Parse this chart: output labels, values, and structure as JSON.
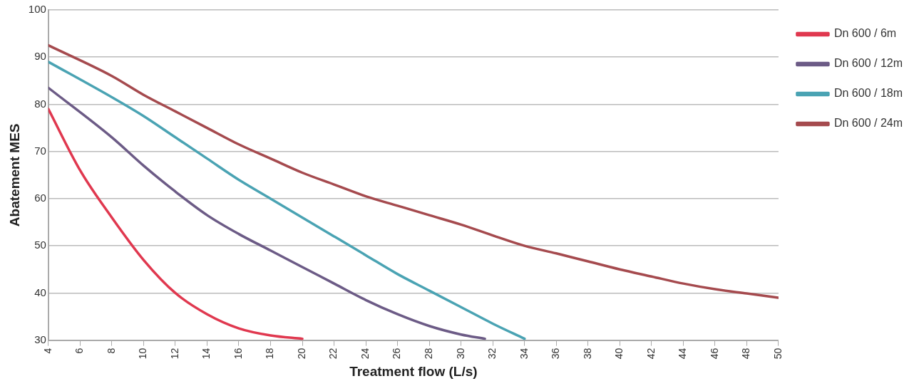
{
  "chart_data": {
    "type": "line",
    "xlabel": "Treatment flow (L/s)",
    "ylabel": "Abatement MES",
    "xlim": [
      4,
      50
    ],
    "xticks": [
      4,
      6,
      8,
      10,
      12,
      14,
      16,
      18,
      20,
      22,
      24,
      26,
      28,
      30,
      32,
      34,
      36,
      38,
      40,
      42,
      44,
      46,
      48,
      50
    ],
    "ylim": [
      30,
      100
    ],
    "yticks": [
      30,
      40,
      50,
      60,
      70,
      80,
      90,
      100
    ],
    "grid": "y",
    "legend": "top right",
    "marker": "none",
    "line_style": "solid",
    "series": [
      {
        "name": "Dn 600 / 6m",
        "color": "#e0384f",
        "x": [
          4,
          6,
          8,
          10,
          12,
          14,
          16,
          18,
          20
        ],
        "values": [
          79,
          66,
          56,
          47,
          40,
          35.5,
          32.5,
          31,
          30.3
        ]
      },
      {
        "name": "Dn 600 / 12m",
        "color": "#6c5b86",
        "x": [
          4,
          8,
          10,
          12,
          14,
          16,
          18,
          20,
          22,
          24,
          26,
          28,
          30,
          31.5
        ],
        "values": [
          83.5,
          73,
          67,
          61.5,
          56.5,
          52.5,
          49,
          45.5,
          42,
          38.5,
          35.5,
          33,
          31.2,
          30.3
        ]
      },
      {
        "name": "Dn 600 / 18m",
        "color": "#4aa3b3",
        "x": [
          4,
          8,
          10,
          12,
          14,
          16,
          18,
          20,
          22,
          24,
          26,
          28,
          30,
          32,
          34
        ],
        "values": [
          89,
          81.5,
          77.5,
          73,
          68.5,
          64,
          60,
          56,
          52,
          48,
          44,
          40.5,
          37,
          33.5,
          30.3
        ]
      },
      {
        "name": "Dn 600 / 24m",
        "color": "#a54a4e",
        "x": [
          4,
          8,
          10,
          12,
          14,
          16,
          18,
          20,
          22,
          24,
          26,
          28,
          30,
          32,
          34,
          36,
          38,
          40,
          42,
          44,
          46,
          48,
          50
        ],
        "values": [
          92.5,
          86,
          82,
          78.5,
          75,
          71.5,
          68.5,
          65.5,
          63,
          60.5,
          58.5,
          56.5,
          54.5,
          52.2,
          50,
          48.4,
          46.7,
          45,
          43.5,
          42,
          40.8,
          39.9,
          39
        ]
      }
    ]
  }
}
